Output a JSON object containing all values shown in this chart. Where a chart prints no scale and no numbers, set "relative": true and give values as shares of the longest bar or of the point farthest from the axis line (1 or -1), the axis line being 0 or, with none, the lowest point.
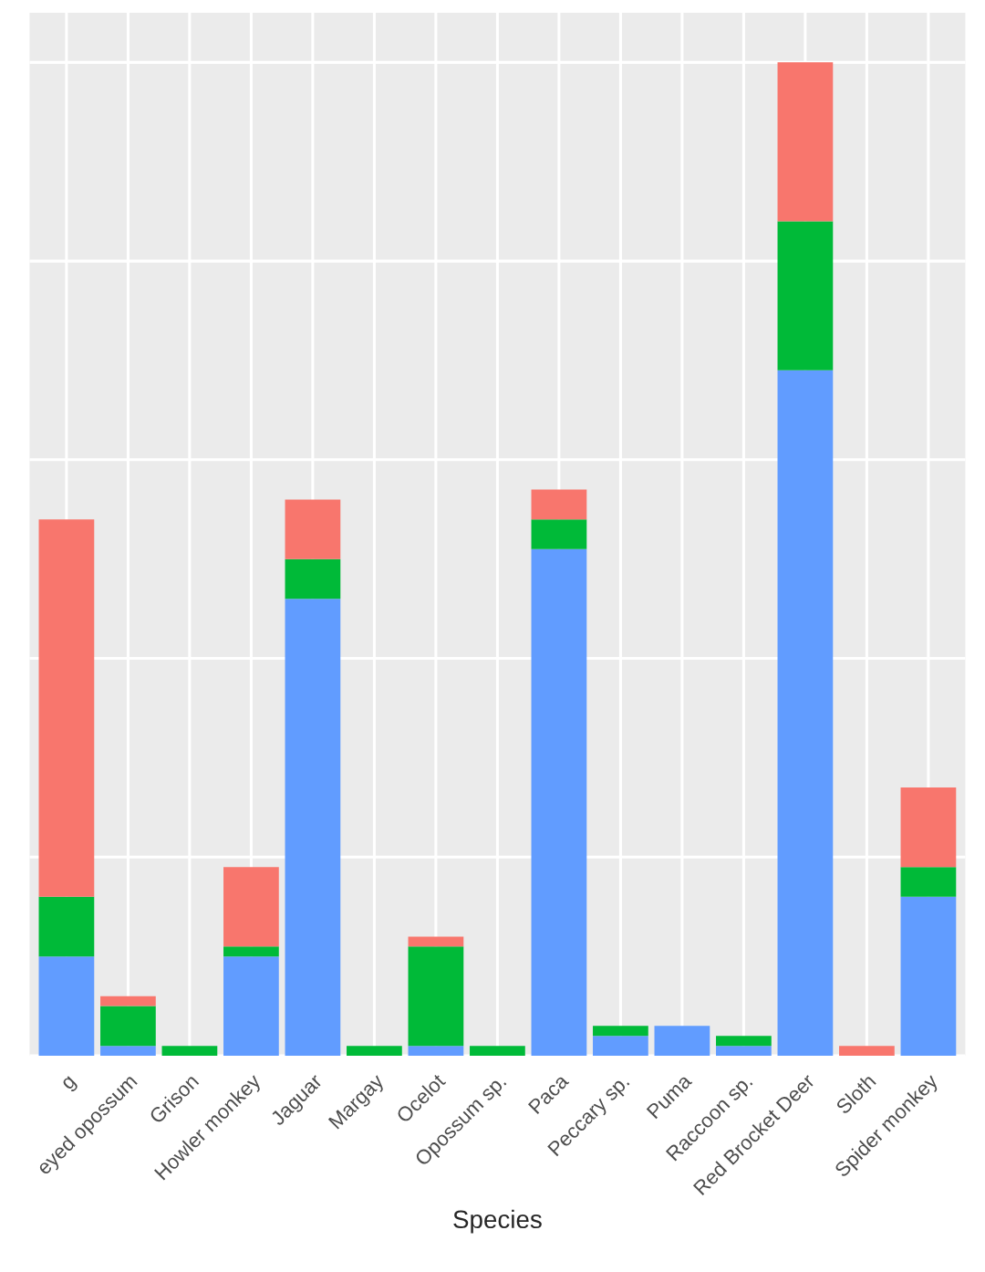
{
  "chart_data": {
    "type": "bar",
    "xlabel": "Species",
    "relative": true,
    "stacked": true,
    "grid": true,
    "legend": false,
    "categories": [
      "g",
      "eyed opossum",
      "Grison",
      "Howler monkey",
      "Jaguar",
      "Margay",
      "Ocelot",
      "Opossum sp.",
      "Paca",
      "Peccary sp.",
      "Puma",
      "Raccoon sp.",
      "Red Brocket Deer",
      "Sloth",
      "Spider monkey"
    ],
    "series": [
      {
        "color": "#619cff",
        "values": [
          0.1,
          0.01,
          0,
          0.1,
          0.46,
          0,
          0.01,
          0,
          0.51,
          0.02,
          0.03,
          0.01,
          0.69,
          0,
          0.16
        ]
      },
      {
        "color": "#00ba38",
        "values": [
          0.06,
          0.04,
          0.01,
          0.01,
          0.04,
          0.01,
          0.1,
          0.01,
          0.03,
          0.01,
          0,
          0.01,
          0.15,
          0,
          0.03
        ]
      },
      {
        "color": "#f8766d",
        "values": [
          0.38,
          0.01,
          0,
          0.08,
          0.06,
          0,
          0.01,
          0,
          0.03,
          0,
          0,
          0,
          0.16,
          0.01,
          0.08
        ]
      }
    ]
  }
}
